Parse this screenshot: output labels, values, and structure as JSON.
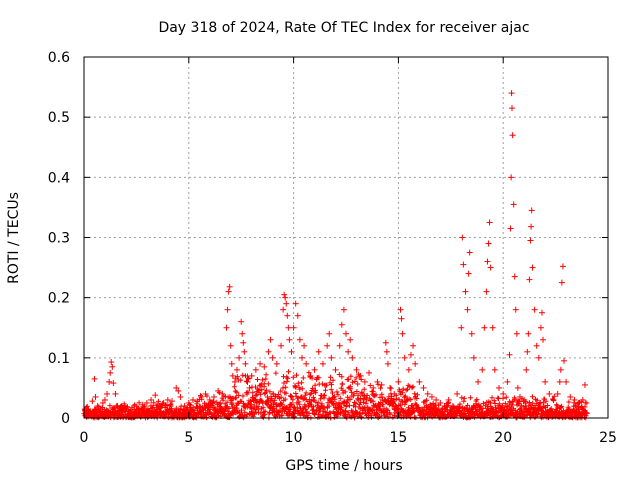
{
  "chart_data": {
    "type": "scatter",
    "title": "Day 318 of 2024, Rate Of TEC Index for receiver ajac",
    "xlabel": "GPS time / hours",
    "ylabel": "ROTI / TECUs",
    "xlim": [
      0,
      25
    ],
    "ylim": [
      0,
      0.6
    ],
    "xticks": [
      "0",
      "5",
      "10",
      "15",
      "20",
      "25"
    ],
    "yticks": [
      "0",
      "0.1",
      "0.2",
      "0.3",
      "0.4",
      "0.5",
      "0.6"
    ],
    "grid": true,
    "marker": "+",
    "color": "#ff0000",
    "series": [
      {
        "name": "ROTI",
        "points": [
          [
            0.05,
            0.012
          ],
          [
            0.1,
            0.008
          ],
          [
            0.2,
            0.015
          ],
          [
            0.3,
            0.01
          ],
          [
            0.4,
            0.028
          ],
          [
            0.5,
            0.065
          ],
          [
            0.55,
            0.035
          ],
          [
            0.65,
            0.02
          ],
          [
            0.8,
            0.015
          ],
          [
            0.9,
            0.025
          ],
          [
            1.0,
            0.03
          ],
          [
            1.1,
            0.04
          ],
          [
            1.2,
            0.06
          ],
          [
            1.25,
            0.075
          ],
          [
            1.3,
            0.093
          ],
          [
            1.35,
            0.085
          ],
          [
            1.4,
            0.058
          ],
          [
            1.5,
            0.04
          ],
          [
            1.6,
            0.02
          ],
          [
            1.8,
            0.012
          ],
          [
            2.0,
            0.015
          ],
          [
            2.2,
            0.01
          ],
          [
            2.4,
            0.02
          ],
          [
            2.6,
            0.015
          ],
          [
            2.8,
            0.022
          ],
          [
            3.0,
            0.025
          ],
          [
            3.2,
            0.03
          ],
          [
            3.4,
            0.038
          ],
          [
            3.6,
            0.02
          ],
          [
            3.8,
            0.025
          ],
          [
            4.0,
            0.03
          ],
          [
            4.2,
            0.028
          ],
          [
            4.4,
            0.05
          ],
          [
            4.5,
            0.045
          ],
          [
            4.6,
            0.035
          ],
          [
            4.8,
            0.02
          ],
          [
            5.0,
            0.025
          ],
          [
            5.2,
            0.03
          ],
          [
            5.4,
            0.028
          ],
          [
            5.6,
            0.035
          ],
          [
            5.8,
            0.04
          ],
          [
            6.0,
            0.03
          ],
          [
            6.2,
            0.035
          ],
          [
            6.4,
            0.045
          ],
          [
            6.6,
            0.04
          ],
          [
            6.8,
            0.15
          ],
          [
            6.85,
            0.18
          ],
          [
            6.9,
            0.21
          ],
          [
            6.95,
            0.218
          ],
          [
            7.0,
            0.12
          ],
          [
            7.05,
            0.09
          ],
          [
            7.1,
            0.07
          ],
          [
            7.2,
            0.06
          ],
          [
            7.3,
            0.08
          ],
          [
            7.4,
            0.1
          ],
          [
            7.5,
            0.16
          ],
          [
            7.55,
            0.14
          ],
          [
            7.6,
            0.125
          ],
          [
            7.65,
            0.11
          ],
          [
            7.7,
            0.09
          ],
          [
            7.8,
            0.06
          ],
          [
            7.9,
            0.05
          ],
          [
            8.0,
            0.07
          ],
          [
            8.2,
            0.08
          ],
          [
            8.4,
            0.09
          ],
          [
            8.6,
            0.085
          ],
          [
            8.8,
            0.11
          ],
          [
            8.9,
            0.13
          ],
          [
            9.0,
            0.1
          ],
          [
            9.2,
            0.09
          ],
          [
            9.4,
            0.12
          ],
          [
            9.5,
            0.18
          ],
          [
            9.55,
            0.205
          ],
          [
            9.6,
            0.2
          ],
          [
            9.65,
            0.19
          ],
          [
            9.7,
            0.17
          ],
          [
            9.75,
            0.15
          ],
          [
            9.8,
            0.13
          ],
          [
            9.9,
            0.11
          ],
          [
            10.0,
            0.15
          ],
          [
            10.1,
            0.19
          ],
          [
            10.2,
            0.17
          ],
          [
            10.3,
            0.13
          ],
          [
            10.4,
            0.1
          ],
          [
            10.5,
            0.12
          ],
          [
            10.6,
            0.09
          ],
          [
            10.8,
            0.07
          ],
          [
            11.0,
            0.08
          ],
          [
            11.2,
            0.11
          ],
          [
            11.4,
            0.09
          ],
          [
            11.6,
            0.12
          ],
          [
            11.7,
            0.14
          ],
          [
            11.8,
            0.1
          ],
          [
            12.0,
            0.08
          ],
          [
            12.2,
            0.12
          ],
          [
            12.3,
            0.155
          ],
          [
            12.4,
            0.18
          ],
          [
            12.5,
            0.14
          ],
          [
            12.6,
            0.11
          ],
          [
            12.7,
            0.13
          ],
          [
            12.8,
            0.1
          ],
          [
            13.0,
            0.08
          ],
          [
            13.2,
            0.07
          ],
          [
            13.4,
            0.06
          ],
          [
            13.6,
            0.075
          ],
          [
            13.8,
            0.05
          ],
          [
            14.0,
            0.06
          ],
          [
            14.2,
            0.055
          ],
          [
            14.4,
            0.125
          ],
          [
            14.45,
            0.11
          ],
          [
            14.5,
            0.09
          ],
          [
            14.6,
            0.05
          ],
          [
            14.8,
            0.04
          ],
          [
            15.0,
            0.06
          ],
          [
            15.1,
            0.18
          ],
          [
            15.15,
            0.165
          ],
          [
            15.2,
            0.14
          ],
          [
            15.3,
            0.1
          ],
          [
            15.5,
            0.08
          ],
          [
            15.6,
            0.105
          ],
          [
            15.7,
            0.12
          ],
          [
            15.8,
            0.09
          ],
          [
            16.0,
            0.06
          ],
          [
            16.2,
            0.05
          ],
          [
            16.4,
            0.04
          ],
          [
            16.6,
            0.035
          ],
          [
            16.8,
            0.03
          ],
          [
            17.0,
            0.025
          ],
          [
            17.2,
            0.02
          ],
          [
            17.4,
            0.03
          ],
          [
            17.6,
            0.02
          ],
          [
            17.8,
            0.04
          ],
          [
            18.0,
            0.15
          ],
          [
            18.05,
            0.3
          ],
          [
            18.1,
            0.255
          ],
          [
            18.2,
            0.21
          ],
          [
            18.3,
            0.18
          ],
          [
            18.35,
            0.24
          ],
          [
            18.4,
            0.275
          ],
          [
            18.5,
            0.14
          ],
          [
            18.6,
            0.1
          ],
          [
            18.8,
            0.06
          ],
          [
            19.0,
            0.08
          ],
          [
            19.1,
            0.15
          ],
          [
            19.2,
            0.21
          ],
          [
            19.25,
            0.26
          ],
          [
            19.3,
            0.29
          ],
          [
            19.35,
            0.325
          ],
          [
            19.4,
            0.25
          ],
          [
            19.5,
            0.15
          ],
          [
            19.6,
            0.08
          ],
          [
            19.8,
            0.05
          ],
          [
            20.0,
            0.04
          ],
          [
            20.2,
            0.06
          ],
          [
            20.3,
            0.105
          ],
          [
            20.35,
            0.315
          ],
          [
            20.38,
            0.4
          ],
          [
            20.4,
            0.54
          ],
          [
            20.42,
            0.515
          ],
          [
            20.45,
            0.47
          ],
          [
            20.5,
            0.355
          ],
          [
            20.55,
            0.235
          ],
          [
            20.6,
            0.18
          ],
          [
            20.65,
            0.14
          ],
          [
            20.7,
            0.05
          ],
          [
            20.8,
            0.035
          ],
          [
            21.0,
            0.03
          ],
          [
            21.1,
            0.08
          ],
          [
            21.15,
            0.11
          ],
          [
            21.2,
            0.14
          ],
          [
            21.25,
            0.23
          ],
          [
            21.3,
            0.295
          ],
          [
            21.33,
            0.318
          ],
          [
            21.36,
            0.345
          ],
          [
            21.4,
            0.25
          ],
          [
            21.5,
            0.18
          ],
          [
            21.6,
            0.12
          ],
          [
            21.7,
            0.1
          ],
          [
            21.8,
            0.15
          ],
          [
            21.85,
            0.175
          ],
          [
            21.9,
            0.13
          ],
          [
            22.0,
            0.06
          ],
          [
            22.2,
            0.04
          ],
          [
            22.4,
            0.03
          ],
          [
            22.6,
            0.04
          ],
          [
            22.7,
            0.06
          ],
          [
            22.75,
            0.08
          ],
          [
            22.8,
            0.225
          ],
          [
            22.85,
            0.252
          ],
          [
            22.9,
            0.095
          ],
          [
            23.0,
            0.06
          ],
          [
            23.2,
            0.035
          ],
          [
            23.4,
            0.03
          ],
          [
            23.6,
            0.025
          ],
          [
            23.8,
            0.03
          ],
          [
            23.9,
            0.055
          ],
          [
            24.0,
            0.008
          ]
        ]
      }
    ]
  }
}
